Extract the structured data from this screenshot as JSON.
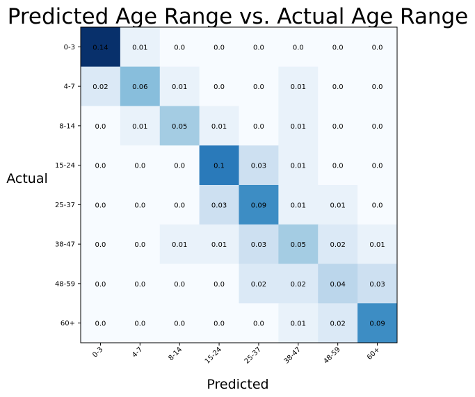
{
  "chart_data": {
    "type": "heatmap",
    "title": "Predicted Age Range vs. Actual Age Range",
    "xlabel": "Predicted",
    "ylabel": "Actual",
    "x_categories": [
      "0-3",
      "4-7",
      "8-14",
      "15-24",
      "25-37",
      "38-47",
      "48-59",
      "60+"
    ],
    "y_categories": [
      "0-3",
      "4-7",
      "8-14",
      "15-24",
      "25-37",
      "38-47",
      "48-59",
      "60+"
    ],
    "values": [
      [
        "0.14",
        "0.01",
        "0.0",
        "0.0",
        "0.0",
        "0.0",
        "0.0",
        "0.0"
      ],
      [
        "0.02",
        "0.06",
        "0.01",
        "0.0",
        "0.0",
        "0.01",
        "0.0",
        "0.0"
      ],
      [
        "0.0",
        "0.01",
        "0.05",
        "0.01",
        "0.0",
        "0.01",
        "0.0",
        "0.0"
      ],
      [
        "0.0",
        "0.0",
        "0.0",
        "0.1",
        "0.03",
        "0.01",
        "0.0",
        "0.0"
      ],
      [
        "0.0",
        "0.0",
        "0.0",
        "0.03",
        "0.09",
        "0.01",
        "0.01",
        "0.0"
      ],
      [
        "0.0",
        "0.0",
        "0.01",
        "0.01",
        "0.03",
        "0.05",
        "0.02",
        "0.01"
      ],
      [
        "0.0",
        "0.0",
        "0.0",
        "0.0",
        "0.02",
        "0.02",
        "0.04",
        "0.03"
      ],
      [
        "0.0",
        "0.0",
        "0.0",
        "0.0",
        "0.0",
        "0.01",
        "0.02",
        "0.09"
      ]
    ],
    "colormap": "Blues",
    "value_range": [
      0,
      0.14
    ],
    "grid": false,
    "legend": "none"
  }
}
